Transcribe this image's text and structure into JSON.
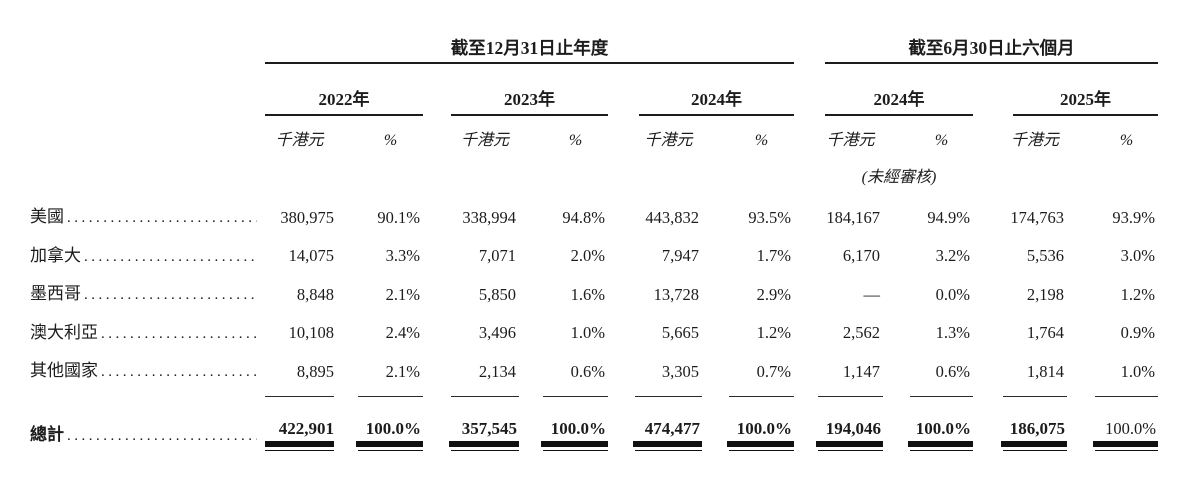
{
  "table": {
    "col_groups": [
      {
        "title": "截至12月31日止年度",
        "years": [
          {
            "label": "2022年"
          },
          {
            "label": "2023年"
          },
          {
            "label": "2024年"
          }
        ]
      },
      {
        "title": "截至6月30日止六個月",
        "years": [
          {
            "label": "2024年"
          },
          {
            "label": "2025年"
          }
        ]
      }
    ],
    "unit_value": "千港元",
    "unit_pct": "%",
    "unaudited_note": "(未經審核)",
    "rows": [
      {
        "label": "美國",
        "values": [
          "380,975",
          "90.1%",
          "338,994",
          "94.8%",
          "443,832",
          "93.5%",
          "184,167",
          "94.9%",
          "174,763",
          "93.9%"
        ]
      },
      {
        "label": "加拿大",
        "values": [
          "14,075",
          "3.3%",
          "7,071",
          "2.0%",
          "7,947",
          "1.7%",
          "6,170",
          "3.2%",
          "5,536",
          "3.0%"
        ]
      },
      {
        "label": "墨西哥",
        "values": [
          "8,848",
          "2.1%",
          "5,850",
          "1.6%",
          "13,728",
          "2.9%",
          "—",
          "0.0%",
          "2,198",
          "1.2%"
        ]
      },
      {
        "label": "澳大利亞",
        "values": [
          "10,108",
          "2.4%",
          "3,496",
          "1.0%",
          "5,665",
          "1.2%",
          "2,562",
          "1.3%",
          "1,764",
          "0.9%"
        ]
      },
      {
        "label": "其他國家",
        "values": [
          "8,895",
          "2.1%",
          "2,134",
          "0.6%",
          "3,305",
          "0.7%",
          "1,147",
          "0.6%",
          "1,814",
          "1.0%"
        ]
      }
    ],
    "total": {
      "label": "總計",
      "values": [
        "422,901",
        "100.0%",
        "357,545",
        "100.0%",
        "474,477",
        "100.0%",
        "194,046",
        "100.0%",
        "186,075",
        "100.0%"
      ]
    }
  }
}
